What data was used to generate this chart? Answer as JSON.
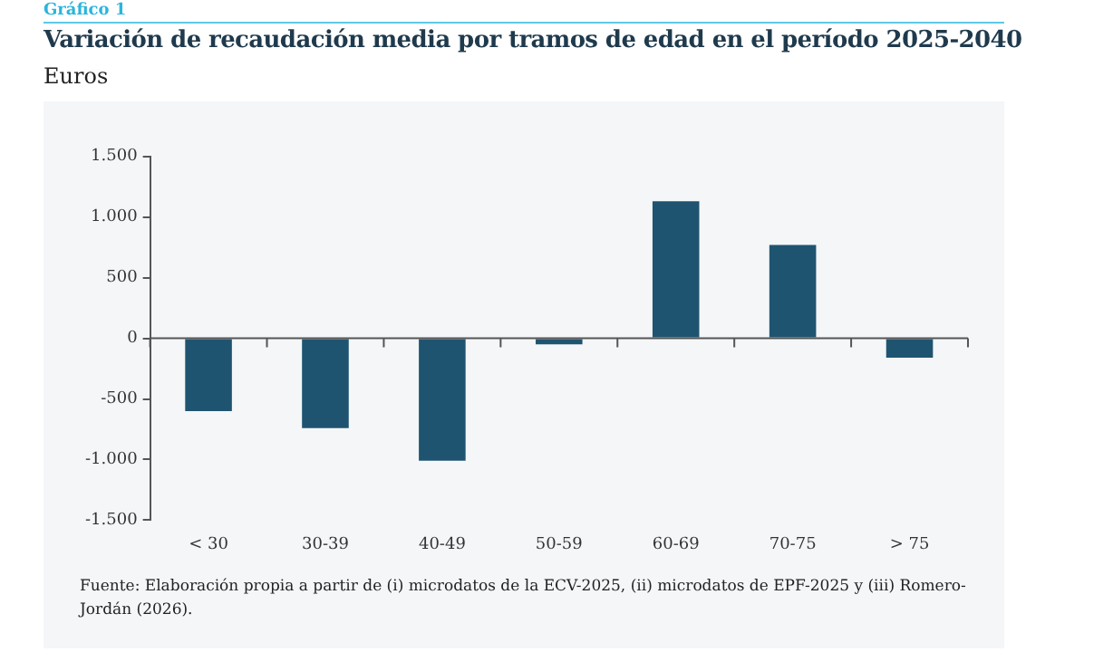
{
  "chart_data": {
    "type": "bar",
    "title": "Variación de recaudación media por tramos de edad en el período 2025-2040",
    "subtitle": "Euros",
    "annotations": [
      "Gráfico 1",
      "Fuente: Elaboración propia a partir de (i) microdatos de la ECV-2025, (ii) microdatos de EPF-2025 y (iii) Romero-Jordán (2026)."
    ],
    "categories": [
      "< 30",
      "30-39",
      "40-49",
      "50-59",
      "60-69",
      "70-75",
      "> 75"
    ],
    "values": [
      -600,
      -740,
      -1010,
      -50,
      1130,
      770,
      -160
    ],
    "color": "#1f5470",
    "ylim": [
      -1500,
      1500
    ],
    "yticks": [
      {
        "value": -1500,
        "label": "-1.500"
      },
      {
        "value": -1000,
        "label": "-1.000"
      },
      {
        "value": -500,
        "label": "-500"
      },
      {
        "value": 0,
        "label": "0"
      },
      {
        "value": 500,
        "label": "500"
      },
      {
        "value": 1000,
        "label": "1.000"
      },
      {
        "value": 1500,
        "label": "1.500"
      }
    ],
    "legend": false
  }
}
